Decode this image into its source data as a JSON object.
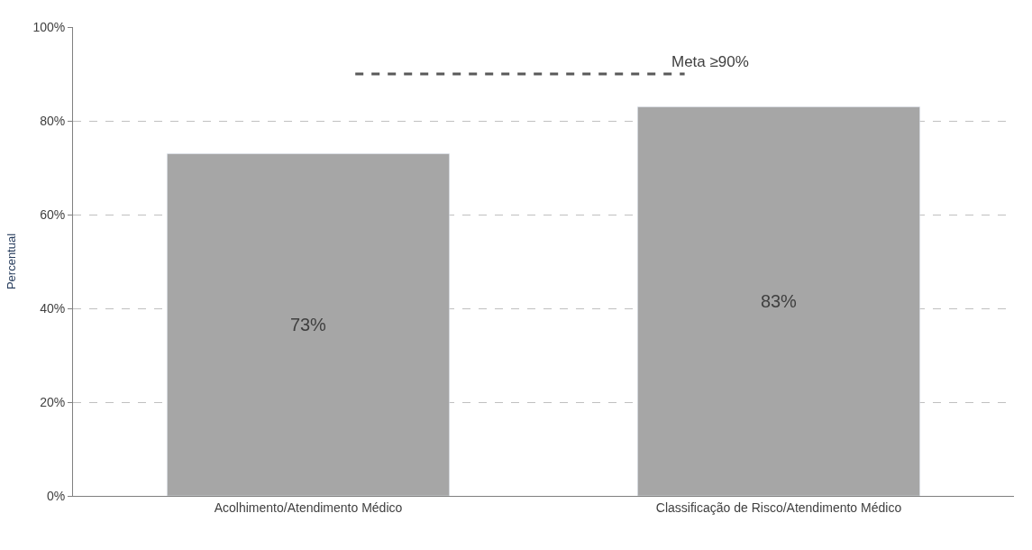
{
  "chart_data": {
    "type": "bar",
    "ylabel": "Percentual",
    "categories": [
      "Acolhimento/Atendimento Médico",
      "Classificação de Risco/Atendimento Médico"
    ],
    "values": [
      73,
      83
    ],
    "color": "#a6a6a6",
    "value_labels": [
      "73%",
      "83%"
    ],
    "ylim": [
      0,
      100
    ],
    "yticks": [
      {
        "value": 0,
        "label": "0%"
      },
      {
        "value": 20,
        "label": "20%"
      },
      {
        "value": 40,
        "label": "40%"
      },
      {
        "value": 60,
        "label": "60%"
      },
      {
        "value": 80,
        "label": "80%"
      },
      {
        "value": 100,
        "label": "100%"
      }
    ],
    "ref_lines": [
      {
        "axis": "y",
        "value": 90,
        "label": "Meta ≥90%",
        "color": "#595959",
        "line_style": "dashed"
      }
    ],
    "grid": "y",
    "legend": false
  }
}
